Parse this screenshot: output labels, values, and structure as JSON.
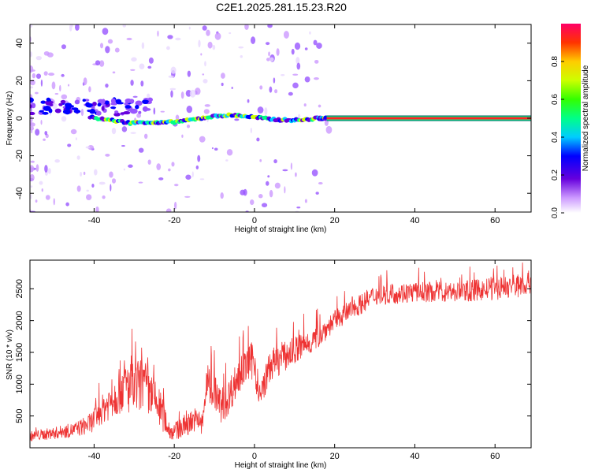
{
  "figure": {
    "title": "C2E1.2025.281.15.23.R20"
  },
  "chart_data": [
    {
      "type": "heatmap",
      "xlabel": "Height of straight line (km)",
      "ylabel": "Frequency (Hz)",
      "xlim": [
        -56,
        69
      ],
      "ylim": [
        -50,
        50
      ],
      "xticks": [
        -40,
        -20,
        0,
        20,
        40,
        60
      ],
      "yticks": [
        -40,
        -20,
        0,
        20,
        40
      ],
      "ridge": {
        "description_points": [
          {
            "x": -41,
            "y": 0.5
          },
          {
            "x": -36,
            "y": -1
          },
          {
            "x": -31,
            "y": -2.5
          },
          {
            "x": -27,
            "y": -2
          },
          {
            "x": -24,
            "y": -2.5
          },
          {
            "x": -20,
            "y": -2
          },
          {
            "x": -16,
            "y": -1
          },
          {
            "x": -12,
            "y": 0.5
          },
          {
            "x": -8,
            "y": 1.5
          },
          {
            "x": -4,
            "y": 1.5
          },
          {
            "x": 0,
            "y": 0.5
          },
          {
            "x": 4,
            "y": -0.5
          },
          {
            "x": 8,
            "y": -1
          },
          {
            "x": 12,
            "y": -1
          },
          {
            "x": 16,
            "y": 0
          },
          {
            "x": 18,
            "y": 0
          }
        ],
        "steady_from_x": 18,
        "steady_to_x": 69,
        "steady_y": 0
      },
      "colorbar": {
        "label": "Normalized spectral amplitude",
        "ticks": [
          0.0,
          0.2,
          0.4,
          0.6,
          0.8
        ],
        "tick_labels": [
          "0.0",
          "0.2",
          "0.4",
          "0.6",
          "0.8"
        ],
        "range": [
          0,
          1
        ]
      }
    },
    {
      "type": "line",
      "xlabel": "Height of straight line (km)",
      "ylabel": "SNR (10 * v/v)",
      "xlim": [
        -56,
        69
      ],
      "ylim": [
        0,
        2950
      ],
      "xticks": [
        -40,
        -20,
        0,
        20,
        40,
        60
      ],
      "yticks": [
        500,
        1000,
        1500,
        2000,
        2500
      ],
      "series": [
        {
          "name": "SNR",
          "color": "#ee3333",
          "points": [
            {
              "x": -56,
              "base": 180,
              "spread": 120
            },
            {
              "x": -50,
              "base": 230,
              "spread": 150
            },
            {
              "x": -45,
              "base": 280,
              "spread": 180
            },
            {
              "x": -41,
              "base": 380,
              "spread": 250
            },
            {
              "x": -38,
              "base": 600,
              "spread": 350
            },
            {
              "x": -35,
              "base": 800,
              "spread": 500
            },
            {
              "x": -33,
              "base": 1000,
              "spread": 700
            },
            {
              "x": -30,
              "base": 900,
              "spread": 650
            },
            {
              "x": -28,
              "base": 1000,
              "spread": 700
            },
            {
              "x": -25,
              "base": 750,
              "spread": 550
            },
            {
              "x": -23,
              "base": 550,
              "spread": 450
            },
            {
              "x": -21,
              "base": 250,
              "spread": 200
            },
            {
              "x": -18,
              "base": 300,
              "spread": 250
            },
            {
              "x": -15,
              "base": 450,
              "spread": 300
            },
            {
              "x": -13,
              "base": 350,
              "spread": 300
            },
            {
              "x": -12,
              "base": 1000,
              "spread": 500
            },
            {
              "x": -10,
              "base": 900,
              "spread": 450
            },
            {
              "x": -8,
              "base": 600,
              "spread": 400
            },
            {
              "x": -5,
              "base": 1000,
              "spread": 450
            },
            {
              "x": -2,
              "base": 1300,
              "spread": 400
            },
            {
              "x": 0,
              "base": 1400,
              "spread": 500
            },
            {
              "x": 1,
              "base": 750,
              "spread": 300
            },
            {
              "x": 4,
              "base": 1300,
              "spread": 400
            },
            {
              "x": 8,
              "base": 1450,
              "spread": 350
            },
            {
              "x": 12,
              "base": 1600,
              "spread": 350
            },
            {
              "x": 15,
              "base": 1700,
              "spread": 300
            },
            {
              "x": 20,
              "base": 2000,
              "spread": 250
            },
            {
              "x": 25,
              "base": 2200,
              "spread": 250
            },
            {
              "x": 30,
              "base": 2400,
              "spread": 250
            },
            {
              "x": 40,
              "base": 2450,
              "spread": 250
            },
            {
              "x": 50,
              "base": 2450,
              "spread": 250
            },
            {
              "x": 60,
              "base": 2500,
              "spread": 280
            },
            {
              "x": 65,
              "base": 2550,
              "spread": 300
            },
            {
              "x": 69,
              "base": 2600,
              "spread": 300
            }
          ]
        }
      ]
    }
  ]
}
